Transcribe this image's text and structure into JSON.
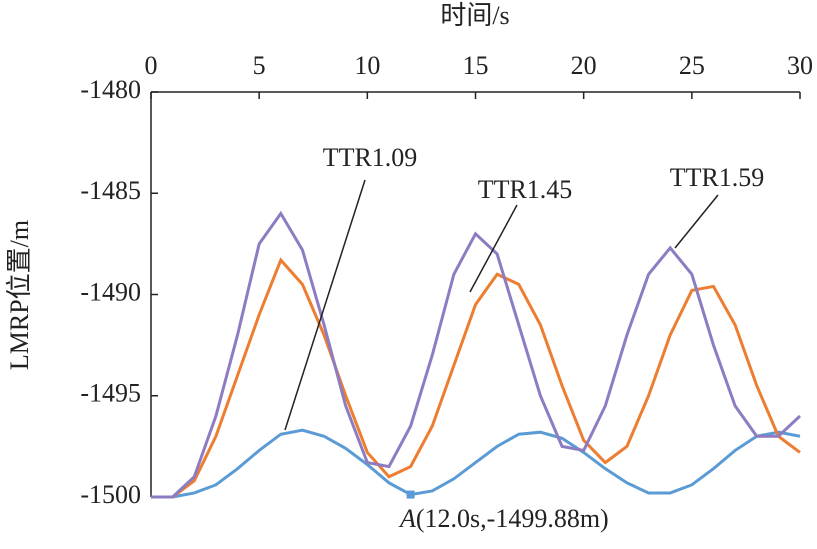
{
  "chart_data": {
    "type": "line",
    "xlabel": "时间/s",
    "ylabel": "LMRP位置/m",
    "x": [
      0,
      1,
      2,
      3,
      4,
      5,
      6,
      7,
      8,
      9,
      10,
      11,
      12,
      13,
      14,
      15,
      16,
      17,
      18,
      19,
      20,
      21,
      22,
      23,
      24,
      25,
      26,
      27,
      28,
      29,
      30
    ],
    "series": [
      {
        "name": "TTR1.09",
        "color": "#5b9bd5",
        "values": [
          -1500,
          -1500,
          -1499.8,
          -1499.4,
          -1498.6,
          -1497.7,
          -1496.9,
          -1496.7,
          -1497.0,
          -1497.6,
          -1498.4,
          -1499.3,
          -1499.88,
          -1499.7,
          -1499.1,
          -1498.3,
          -1497.5,
          -1496.9,
          -1496.8,
          -1497.1,
          -1497.8,
          -1498.6,
          -1499.3,
          -1499.8,
          -1499.8,
          -1499.4,
          -1498.6,
          -1497.7,
          -1497.0,
          -1496.8,
          -1497.0
        ]
      },
      {
        "name": "TTR1.45",
        "color": "#ed7d31",
        "values": [
          -1500,
          -1500,
          -1499.2,
          -1497,
          -1494,
          -1491,
          -1488.3,
          -1489.5,
          -1492,
          -1495,
          -1497.8,
          -1499.0,
          -1498.5,
          -1496.5,
          -1493.5,
          -1490.5,
          -1489.0,
          -1489.5,
          -1491.5,
          -1494.5,
          -1497.2,
          -1498.3,
          -1497.5,
          -1495,
          -1492,
          -1489.8,
          -1489.6,
          -1491.5,
          -1494.5,
          -1497,
          -1497.8
        ]
      },
      {
        "name": "TTR1.59",
        "color": "#8e7cc3",
        "values": [
          -1500,
          -1500,
          -1499,
          -1496,
          -1492,
          -1487.5,
          -1486,
          -1487.8,
          -1491.5,
          -1495.5,
          -1498.3,
          -1498.5,
          -1496.5,
          -1493,
          -1489,
          -1487,
          -1488,
          -1491.5,
          -1495,
          -1497.5,
          -1497.7,
          -1495.5,
          -1492,
          -1489,
          -1487.7,
          -1489,
          -1492.5,
          -1495.5,
          -1497,
          -1497,
          -1496
        ]
      }
    ],
    "point": {
      "x": 12,
      "y": -1499.88,
      "letter": "A",
      "label": "(12.0s,-1499.88m)"
    },
    "xlim": [
      0,
      30
    ],
    "xticks": [
      0,
      5,
      10,
      15,
      20,
      25,
      30
    ],
    "ylim": [
      -1500,
      -1480
    ],
    "yticks": [
      -1480,
      -1485,
      -1490,
      -1495,
      -1500
    ]
  }
}
